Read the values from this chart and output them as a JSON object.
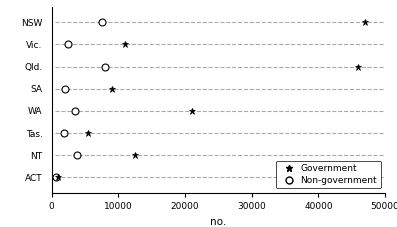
{
  "states": [
    "NSW",
    "Vic.",
    "Qld.",
    "SA",
    "WA",
    "Tas.",
    "NT",
    "ACT"
  ],
  "government": [
    47000,
    11000,
    46000,
    9000,
    21000,
    5500,
    12500,
    900
  ],
  "non_government": [
    7500,
    2500,
    8000,
    2000,
    3500,
    1800,
    3800,
    600
  ],
  "gov_marker": "*",
  "nongov_marker": "o",
  "gov_color": "black",
  "nongov_color": "white",
  "nongov_edgecolor": "black",
  "line_color": "#aaaaaa",
  "line_style": "--",
  "xlabel": "no.",
  "xlim": [
    0,
    50000
  ],
  "xticks": [
    0,
    10000,
    20000,
    30000,
    40000,
    50000
  ],
  "xtick_labels": [
    "0",
    "10000",
    "20000",
    "30000",
    "40000",
    "50000"
  ],
  "legend_gov_label": "Government",
  "legend_nongov_label": "Non-government",
  "gov_marker_size": 5,
  "nongov_marker_size": 5,
  "legend_fontsize": 6.5,
  "tick_fontsize": 6.5,
  "label_fontsize": 7.5,
  "background_color": "#ffffff",
  "line_xstart": 500,
  "line_xend": 50000
}
